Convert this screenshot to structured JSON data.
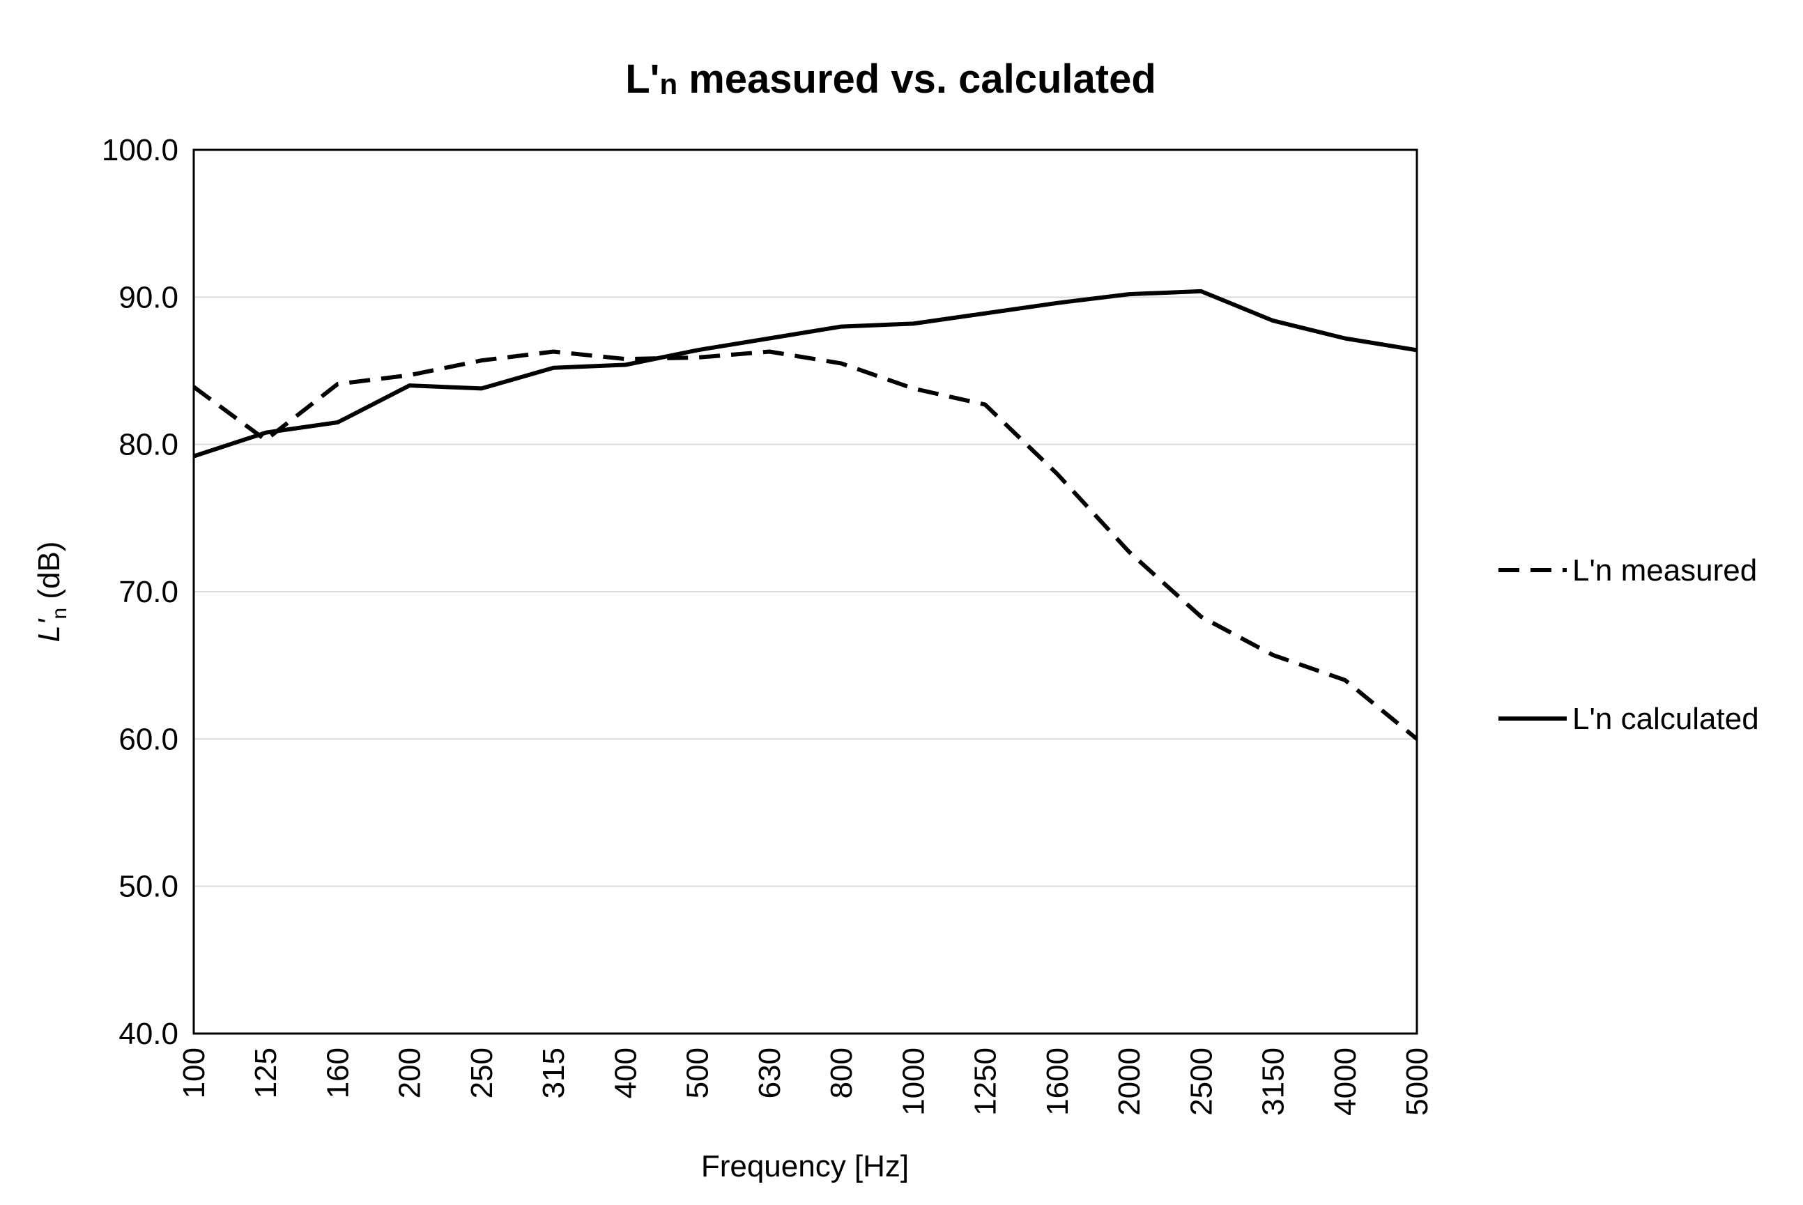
{
  "chart_data": {
    "type": "line",
    "title_main": "L'",
    "title_sub": "n",
    "title_rest": " measured vs. calculated",
    "xlabel": "Frequency [Hz]",
    "ylabel_main": "L'",
    "ylabel_sub": "n",
    "ylabel_unit": " (dB)",
    "categories": [
      "100",
      "125",
      "160",
      "200",
      "250",
      "315",
      "400",
      "500",
      "630",
      "800",
      "1000",
      "1250",
      "1600",
      "2000",
      "2500",
      "3150",
      "4000",
      "5000"
    ],
    "ylim": [
      40,
      100
    ],
    "yticks": [
      "40.0",
      "50.0",
      "60.0",
      "70.0",
      "80.0",
      "90.0",
      "100.0"
    ],
    "grid": true,
    "legend_position": "right",
    "series": [
      {
        "name": "L'n measured",
        "style": "dashed",
        "color": "#000000",
        "values": [
          83.9,
          80.3,
          84.1,
          84.7,
          85.7,
          86.3,
          85.8,
          85.9,
          86.3,
          85.5,
          83.8,
          82.7,
          78.0,
          72.7,
          68.3,
          65.7,
          64.0,
          60.0
        ]
      },
      {
        "name": "L'n calculated",
        "style": "solid",
        "color": "#000000",
        "values": [
          79.2,
          80.8,
          81.5,
          84.0,
          83.8,
          85.2,
          85.4,
          86.4,
          87.2,
          88.0,
          88.2,
          88.9,
          89.6,
          90.2,
          90.4,
          88.4,
          87.2,
          86.4
        ]
      }
    ]
  }
}
